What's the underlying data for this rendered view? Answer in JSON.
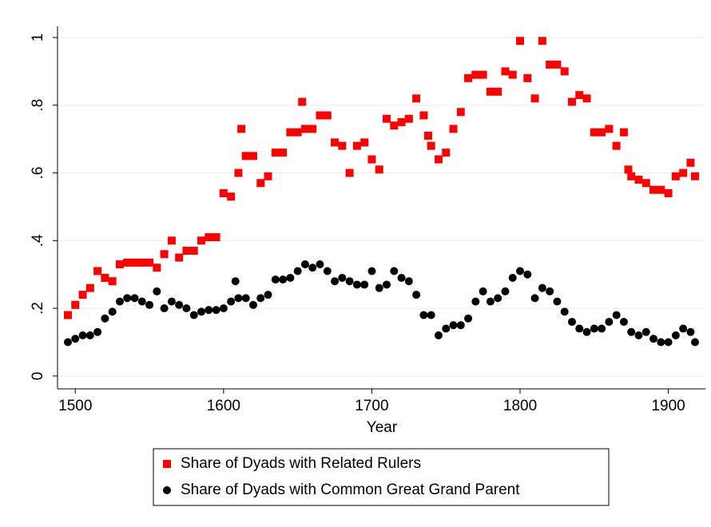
{
  "chart_data": {
    "type": "scatter",
    "x_label": "Year",
    "xlim": [
      1488,
      1925
    ],
    "xticks": [
      1500,
      1600,
      1700,
      1800,
      1900
    ],
    "ylim": [
      -0.038,
      1.033
    ],
    "yticks": [
      0,
      {
        "value": 0.2,
        "label": ".2"
      },
      {
        "value": 0.4,
        "label": ".4"
      },
      {
        "value": 0.6,
        "label": ".6"
      },
      {
        "value": 0.8,
        "label": ".8"
      },
      1
    ],
    "grid": true,
    "legend": "bottom",
    "series": [
      {
        "name": "Share of Dyads with Related Rulers",
        "color": "#ff0000",
        "marker": "square",
        "x": [
          1495,
          1500,
          1505,
          1510,
          1515,
          1520,
          1525,
          1530,
          1535,
          1540,
          1545,
          1550,
          1555,
          1560,
          1565,
          1570,
          1575,
          1580,
          1585,
          1590,
          1595,
          1600,
          1605,
          1610,
          1612,
          1615,
          1620,
          1625,
          1630,
          1635,
          1640,
          1645,
          1650,
          1653,
          1655,
          1660,
          1665,
          1670,
          1675,
          1680,
          1685,
          1690,
          1695,
          1700,
          1705,
          1710,
          1715,
          1720,
          1725,
          1730,
          1735,
          1738,
          1740,
          1745,
          1750,
          1755,
          1760,
          1765,
          1770,
          1775,
          1780,
          1785,
          1790,
          1795,
          1800,
          1805,
          1810,
          1815,
          1820,
          1825,
          1830,
          1835,
          1840,
          1845,
          1850,
          1855,
          1860,
          1865,
          1870,
          1873,
          1875,
          1880,
          1885,
          1890,
          1895,
          1900,
          1905,
          1910,
          1915,
          1918
        ],
        "values": [
          0.18,
          0.21,
          0.24,
          0.26,
          0.31,
          0.29,
          0.28,
          0.33,
          0.335,
          0.335,
          0.335,
          0.335,
          0.32,
          0.36,
          0.4,
          0.35,
          0.37,
          0.37,
          0.4,
          0.41,
          0.41,
          0.54,
          0.53,
          0.6,
          0.73,
          0.65,
          0.65,
          0.57,
          0.59,
          0.66,
          0.66,
          0.72,
          0.72,
          0.81,
          0.73,
          0.73,
          0.77,
          0.77,
          0.69,
          0.68,
          0.6,
          0.68,
          0.69,
          0.64,
          0.61,
          0.76,
          0.74,
          0.75,
          0.76,
          0.82,
          0.77,
          0.71,
          0.68,
          0.64,
          0.66,
          0.73,
          0.78,
          0.88,
          0.89,
          0.89,
          0.84,
          0.84,
          0.9,
          0.89,
          0.99,
          0.88,
          0.82,
          0.99,
          0.92,
          0.92,
          0.9,
          0.81,
          0.83,
          0.82,
          0.72,
          0.72,
          0.73,
          0.68,
          0.72,
          0.61,
          0.59,
          0.58,
          0.57,
          0.55,
          0.55,
          0.54,
          0.59,
          0.6,
          0.63,
          0.59
        ]
      },
      {
        "name": "Share of Dyads with Common Great Grand Parent",
        "color": "#000000",
        "marker": "circle",
        "x": [
          1495,
          1500,
          1505,
          1510,
          1515,
          1520,
          1525,
          1530,
          1535,
          1540,
          1545,
          1550,
          1555,
          1560,
          1565,
          1570,
          1575,
          1580,
          1585,
          1590,
          1595,
          1600,
          1605,
          1608,
          1610,
          1615,
          1620,
          1625,
          1630,
          1635,
          1640,
          1645,
          1650,
          1655,
          1660,
          1665,
          1670,
          1675,
          1680,
          1685,
          1690,
          1695,
          1700,
          1705,
          1710,
          1715,
          1720,
          1725,
          1730,
          1735,
          1740,
          1745,
          1750,
          1755,
          1760,
          1765,
          1770,
          1775,
          1780,
          1785,
          1790,
          1795,
          1800,
          1805,
          1810,
          1815,
          1820,
          1825,
          1830,
          1835,
          1840,
          1845,
          1850,
          1855,
          1860,
          1865,
          1870,
          1875,
          1880,
          1885,
          1890,
          1895,
          1900,
          1905,
          1910,
          1915,
          1918
        ],
        "values": [
          0.1,
          0.11,
          0.12,
          0.12,
          0.13,
          0.17,
          0.19,
          0.22,
          0.23,
          0.23,
          0.22,
          0.21,
          0.25,
          0.2,
          0.22,
          0.21,
          0.2,
          0.18,
          0.19,
          0.195,
          0.195,
          0.2,
          0.22,
          0.28,
          0.23,
          0.23,
          0.21,
          0.23,
          0.24,
          0.285,
          0.285,
          0.29,
          0.31,
          0.33,
          0.32,
          0.33,
          0.31,
          0.28,
          0.29,
          0.28,
          0.27,
          0.27,
          0.31,
          0.26,
          0.27,
          0.31,
          0.29,
          0.28,
          0.24,
          0.18,
          0.18,
          0.12,
          0.14,
          0.15,
          0.15,
          0.17,
          0.22,
          0.25,
          0.22,
          0.23,
          0.25,
          0.29,
          0.31,
          0.3,
          0.23,
          0.26,
          0.25,
          0.22,
          0.19,
          0.16,
          0.14,
          0.13,
          0.14,
          0.14,
          0.16,
          0.18,
          0.16,
          0.13,
          0.12,
          0.13,
          0.11,
          0.1,
          0.1,
          0.12,
          0.14,
          0.13,
          0.1
        ]
      }
    ]
  }
}
